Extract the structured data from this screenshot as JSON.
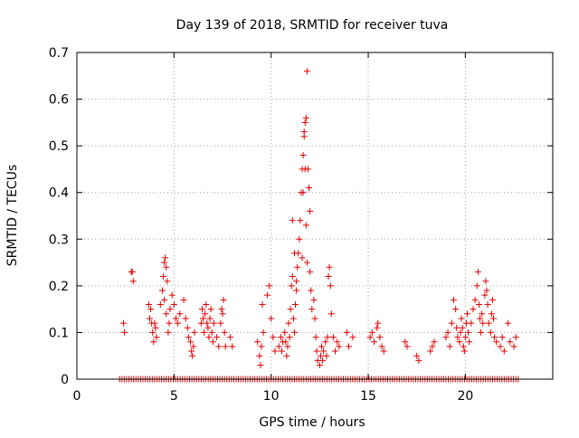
{
  "chart_data": {
    "type": "scatter",
    "title": "Day 139 of 2018, SRMTID for receiver tuva",
    "xlabel": "GPS time / hours",
    "ylabel": "SRMTID / TECUs",
    "xlim": [
      0,
      24.5
    ],
    "ylim": [
      0,
      0.7
    ],
    "xticks": [
      0,
      5,
      10,
      15,
      20
    ],
    "yticks": [
      0,
      0.1,
      0.2,
      0.3,
      0.4,
      0.5,
      0.6,
      0.7
    ],
    "xtick_labels": [
      "0",
      "5",
      "10",
      "15",
      "20"
    ],
    "ytick_labels": [
      "0",
      "0.1",
      "0.2",
      "0.3",
      "0.4",
      "0.5",
      "0.6",
      "0.7"
    ],
    "grid": true,
    "marker": "+",
    "color": "#e00000",
    "zero_band": {
      "x_start": 2.2,
      "x_end": 22.8,
      "step": 0.12,
      "y": 0
    },
    "series": [
      {
        "name": "SRMTID",
        "points": [
          [
            2.4,
            0.12
          ],
          [
            2.45,
            0.1
          ],
          [
            2.8,
            0.23
          ],
          [
            2.85,
            0.23
          ],
          [
            2.9,
            0.21
          ],
          [
            3.7,
            0.16
          ],
          [
            3.75,
            0.13
          ],
          [
            3.8,
            0.15
          ],
          [
            3.85,
            0.12
          ],
          [
            3.9,
            0.1
          ],
          [
            3.95,
            0.08
          ],
          [
            4.0,
            0.12
          ],
          [
            4.05,
            0.11
          ],
          [
            4.1,
            0.09
          ],
          [
            4.3,
            0.16
          ],
          [
            4.4,
            0.19
          ],
          [
            4.45,
            0.22
          ],
          [
            4.5,
            0.25
          ],
          [
            4.55,
            0.26
          ],
          [
            4.6,
            0.24
          ],
          [
            4.65,
            0.21
          ],
          [
            4.5,
            0.17
          ],
          [
            4.6,
            0.14
          ],
          [
            4.7,
            0.1
          ],
          [
            4.75,
            0.12
          ],
          [
            4.8,
            0.15
          ],
          [
            4.9,
            0.18
          ],
          [
            5.0,
            0.16
          ],
          [
            5.1,
            0.13
          ],
          [
            5.2,
            0.12
          ],
          [
            5.3,
            0.14
          ],
          [
            5.5,
            0.17
          ],
          [
            5.6,
            0.13
          ],
          [
            5.7,
            0.11
          ],
          [
            5.75,
            0.09
          ],
          [
            5.85,
            0.08
          ],
          [
            5.9,
            0.06
          ],
          [
            5.95,
            0.05
          ],
          [
            6.0,
            0.07
          ],
          [
            6.05,
            0.1
          ],
          [
            6.4,
            0.12
          ],
          [
            6.45,
            0.15
          ],
          [
            6.5,
            0.13
          ],
          [
            6.55,
            0.1
          ],
          [
            6.6,
            0.14
          ],
          [
            6.65,
            0.16
          ],
          [
            6.7,
            0.12
          ],
          [
            6.75,
            0.11
          ],
          [
            6.8,
            0.09
          ],
          [
            6.85,
            0.13
          ],
          [
            6.9,
            0.15
          ],
          [
            6.95,
            0.1
          ],
          [
            7.0,
            0.08
          ],
          [
            7.05,
            0.12
          ],
          [
            7.2,
            0.09
          ],
          [
            7.3,
            0.07
          ],
          [
            7.4,
            0.12
          ],
          [
            7.45,
            0.15
          ],
          [
            7.5,
            0.14
          ],
          [
            7.55,
            0.17
          ],
          [
            7.6,
            0.1
          ],
          [
            7.65,
            0.07
          ],
          [
            7.9,
            0.09
          ],
          [
            8.0,
            0.07
          ],
          [
            9.3,
            0.08
          ],
          [
            9.4,
            0.05
          ],
          [
            9.45,
            0.03
          ],
          [
            9.5,
            0.07
          ],
          [
            9.6,
            0.1
          ],
          [
            9.55,
            0.16
          ],
          [
            9.8,
            0.18
          ],
          [
            9.9,
            0.2
          ],
          [
            10.0,
            0.13
          ],
          [
            10.1,
            0.09
          ],
          [
            10.2,
            0.06
          ],
          [
            10.4,
            0.07
          ],
          [
            10.5,
            0.09
          ],
          [
            10.55,
            0.06
          ],
          [
            10.6,
            0.08
          ],
          [
            10.7,
            0.1
          ],
          [
            10.75,
            0.08
          ],
          [
            10.8,
            0.05
          ],
          [
            10.85,
            0.07
          ],
          [
            10.9,
            0.12
          ],
          [
            10.95,
            0.09
          ],
          [
            11.0,
            0.15
          ],
          [
            11.05,
            0.2
          ],
          [
            11.1,
            0.22
          ],
          [
            11.15,
            0.13
          ],
          [
            11.2,
            0.1
          ],
          [
            11.25,
            0.16
          ],
          [
            11.3,
            0.19
          ],
          [
            11.35,
            0.24
          ],
          [
            11.4,
            0.27
          ],
          [
            11.45,
            0.3
          ],
          [
            11.5,
            0.34
          ],
          [
            11.55,
            0.4
          ],
          [
            11.6,
            0.45
          ],
          [
            11.65,
            0.48
          ],
          [
            11.7,
            0.52
          ],
          [
            11.75,
            0.55
          ],
          [
            11.8,
            0.56
          ],
          [
            11.85,
            0.66
          ],
          [
            11.9,
            0.45
          ],
          [
            11.95,
            0.41
          ],
          [
            12.0,
            0.36
          ],
          [
            11.1,
            0.34
          ],
          [
            11.2,
            0.27
          ],
          [
            11.3,
            0.21
          ],
          [
            11.6,
            0.26
          ],
          [
            11.65,
            0.4
          ],
          [
            11.7,
            0.53
          ],
          [
            11.75,
            0.45
          ],
          [
            11.8,
            0.33
          ],
          [
            11.85,
            0.25
          ],
          [
            12.0,
            0.23
          ],
          [
            12.05,
            0.19
          ],
          [
            12.1,
            0.15
          ],
          [
            12.2,
            0.17
          ],
          [
            12.25,
            0.13
          ],
          [
            12.3,
            0.09
          ],
          [
            12.35,
            0.06
          ],
          [
            12.4,
            0.04
          ],
          [
            12.5,
            0.03
          ],
          [
            12.55,
            0.05
          ],
          [
            12.6,
            0.07
          ],
          [
            12.65,
            0.04
          ],
          [
            12.7,
            0.06
          ],
          [
            12.8,
            0.08
          ],
          [
            12.85,
            0.05
          ],
          [
            12.9,
            0.09
          ],
          [
            12.95,
            0.22
          ],
          [
            13.0,
            0.24
          ],
          [
            13.05,
            0.2
          ],
          [
            13.1,
            0.14
          ],
          [
            13.2,
            0.09
          ],
          [
            13.3,
            0.06
          ],
          [
            13.4,
            0.08
          ],
          [
            13.5,
            0.07
          ],
          [
            13.9,
            0.1
          ],
          [
            14.0,
            0.07
          ],
          [
            14.2,
            0.09
          ],
          [
            15.1,
            0.09
          ],
          [
            15.2,
            0.1
          ],
          [
            15.3,
            0.08
          ],
          [
            15.45,
            0.11
          ],
          [
            15.5,
            0.12
          ],
          [
            15.6,
            0.09
          ],
          [
            15.7,
            0.07
          ],
          [
            15.8,
            0.06
          ],
          [
            16.9,
            0.08
          ],
          [
            17.0,
            0.07
          ],
          [
            17.5,
            0.05
          ],
          [
            17.6,
            0.04
          ],
          [
            18.2,
            0.06
          ],
          [
            18.3,
            0.07
          ],
          [
            18.4,
            0.08
          ],
          [
            19.0,
            0.09
          ],
          [
            19.1,
            0.1
          ],
          [
            19.2,
            0.07
          ],
          [
            19.3,
            0.12
          ],
          [
            19.4,
            0.17
          ],
          [
            19.5,
            0.15
          ],
          [
            19.55,
            0.11
          ],
          [
            19.6,
            0.09
          ],
          [
            19.7,
            0.08
          ],
          [
            19.75,
            0.1
          ],
          [
            19.8,
            0.13
          ],
          [
            19.85,
            0.11
          ],
          [
            19.9,
            0.07
          ],
          [
            19.95,
            0.06
          ],
          [
            20.0,
            0.09
          ],
          [
            20.05,
            0.12
          ],
          [
            20.1,
            0.14
          ],
          [
            20.15,
            0.1
          ],
          [
            20.2,
            0.08
          ],
          [
            20.3,
            0.12
          ],
          [
            20.4,
            0.15
          ],
          [
            20.5,
            0.17
          ],
          [
            20.6,
            0.2
          ],
          [
            20.65,
            0.23
          ],
          [
            20.7,
            0.16
          ],
          [
            20.75,
            0.13
          ],
          [
            20.8,
            0.1
          ],
          [
            20.85,
            0.14
          ],
          [
            20.9,
            0.12
          ],
          [
            21.0,
            0.18
          ],
          [
            21.05,
            0.21
          ],
          [
            21.1,
            0.19
          ],
          [
            21.15,
            0.16
          ],
          [
            21.2,
            0.12
          ],
          [
            21.3,
            0.1
          ],
          [
            21.35,
            0.14
          ],
          [
            21.4,
            0.17
          ],
          [
            21.45,
            0.13
          ],
          [
            21.5,
            0.09
          ],
          [
            21.6,
            0.08
          ],
          [
            21.8,
            0.07
          ],
          [
            21.9,
            0.09
          ],
          [
            22.0,
            0.06
          ],
          [
            22.2,
            0.12
          ],
          [
            22.3,
            0.08
          ],
          [
            22.5,
            0.07
          ],
          [
            22.6,
            0.09
          ]
        ]
      }
    ]
  }
}
